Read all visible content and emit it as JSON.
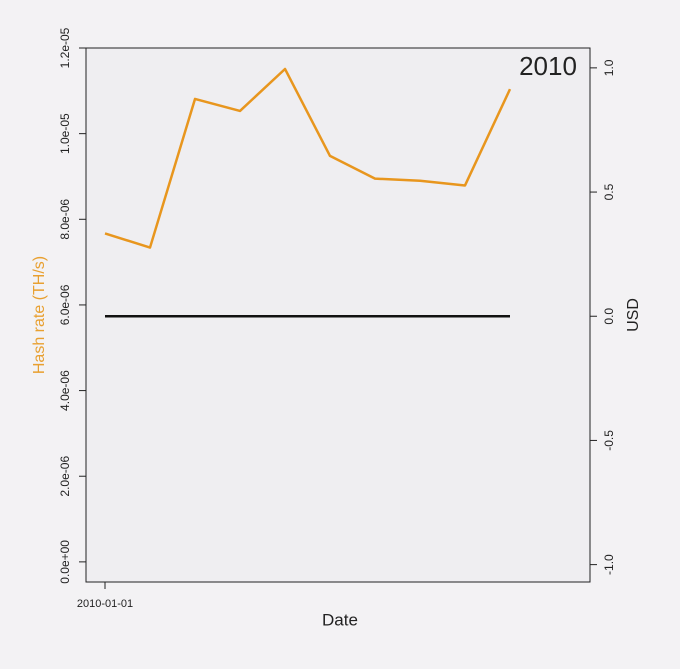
{
  "chart_data": {
    "type": "line",
    "annotation": "2010",
    "x_label": "Date",
    "y_label": "Hash rate (TH/s)",
    "y2_label": "USD",
    "categories": [
      "2010-01-01",
      null,
      null,
      null,
      null,
      null,
      null,
      null,
      null,
      null
    ],
    "series": [
      {
        "name": "Hash rate",
        "color": "#e8961e",
        "values": [
          7.67e-06,
          7.34e-06,
          1.081e-05,
          1.053e-05,
          1.151e-05,
          9.48e-06,
          8.95e-06,
          8.9e-06,
          8.79e-06,
          1.104e-05
        ]
      },
      {
        "name": "USD",
        "color": "#111111",
        "axis": "y2",
        "values": [
          0,
          0,
          0,
          0,
          0,
          0,
          0,
          0,
          0,
          0
        ]
      }
    ],
    "ylim": [
      -4.7e-07,
      1.2e-05
    ],
    "yticks": [
      {
        "value": 0,
        "label": "0.0e+00"
      },
      {
        "value": 2e-06,
        "label": "2.0e-06"
      },
      {
        "value": 4e-06,
        "label": "4.0e-06"
      },
      {
        "value": 6e-06,
        "label": "6.0e-06"
      },
      {
        "value": 8e-06,
        "label": "8.0e-06"
      },
      {
        "value": 1e-05,
        "label": "1.0e-05"
      },
      {
        "value": 1.2e-05,
        "label": "1.2e-05"
      }
    ],
    "y2lim": [
      -1.07,
      1.08
    ],
    "y2ticks": [
      {
        "value": -1,
        "label": "-1.0"
      },
      -0.5,
      {
        "value": 0,
        "label": "0.0"
      },
      0.5,
      {
        "value": 1,
        "label": "1.0"
      }
    ]
  }
}
